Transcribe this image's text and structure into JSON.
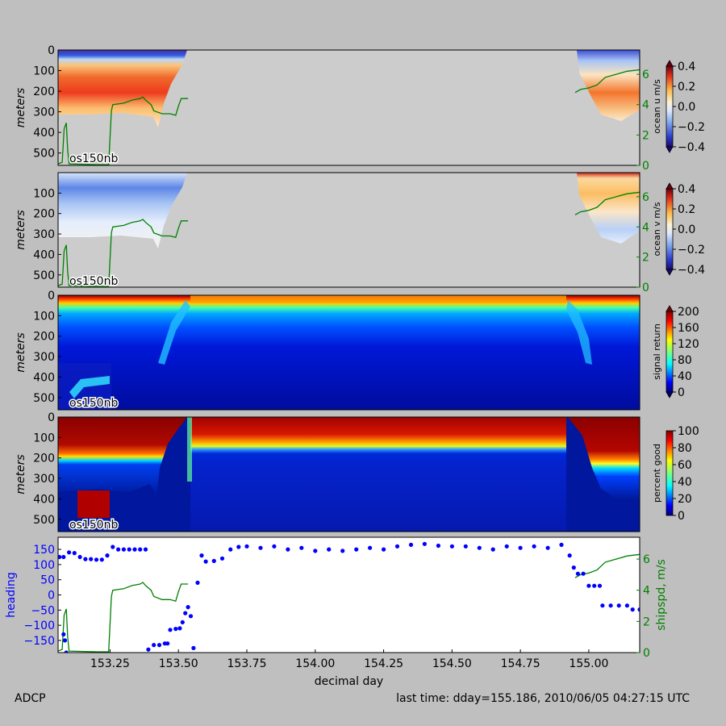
{
  "footer": {
    "left": "ADCP",
    "right": "last time: dday=155.186,  2010/06/05 04:27:15 UTC"
  },
  "colors": {
    "background": "#bfbfbf",
    "no_data": "#cccccc",
    "shipspd_line": "#008000",
    "heading_points": "#0000ff"
  },
  "chart_data": [
    {
      "type": "heatmap",
      "panel": "ocean-u",
      "ylabel": "meters",
      "yticks": [
        0,
        100,
        200,
        300,
        400,
        500
      ],
      "ylim": [
        560,
        0
      ],
      "xlim": [
        153.06,
        155.186
      ],
      "colorbar": {
        "label": "ocean u m/s",
        "ticks": [
          "0.4",
          "0.2",
          "0.0",
          "−0.2",
          "−0.4"
        ],
        "range": [
          -0.45,
          0.45
        ],
        "colormap": "jet-like diverging"
      },
      "right_axis": {
        "ticks": [
          "0",
          "2",
          "4",
          "6"
        ],
        "range": [
          0,
          7.6
        ],
        "color": "#008000"
      },
      "instrument_label": "os150nb",
      "data_segments": [
        [
          153.06,
          153.54
        ],
        [
          154.95,
          155.186
        ]
      ]
    },
    {
      "type": "heatmap",
      "panel": "ocean-v",
      "ylabel": "meters",
      "yticks": [
        100,
        200,
        300,
        400,
        500
      ],
      "ylim": [
        560,
        0
      ],
      "xlim": [
        153.06,
        155.186
      ],
      "colorbar": {
        "label": "ocean v m/s",
        "ticks": [
          "0.4",
          "0.2",
          "0.0",
          "−0.2",
          "−0.4"
        ],
        "range": [
          -0.45,
          0.45
        ],
        "colormap": "jet-like diverging"
      },
      "right_axis": {
        "ticks": [
          "0",
          "2",
          "4",
          "6"
        ],
        "range": [
          0,
          7.6
        ],
        "color": "#008000"
      },
      "instrument_label": "os150nb",
      "data_segments": [
        [
          153.06,
          153.54
        ],
        [
          154.95,
          155.186
        ]
      ]
    },
    {
      "type": "heatmap",
      "panel": "signal-return",
      "ylabel": "meters",
      "yticks": [
        0,
        100,
        200,
        300,
        400,
        500
      ],
      "ylim": [
        560,
        0
      ],
      "xlim": [
        153.06,
        155.186
      ],
      "colorbar": {
        "label": "signal return",
        "ticks": [
          "200",
          "160",
          "120",
          "80",
          "40",
          "0"
        ],
        "range": [
          0,
          200
        ],
        "colormap": "jet"
      },
      "instrument_label": "os150nb"
    },
    {
      "type": "heatmap",
      "panel": "percent-good",
      "ylabel": "meters",
      "yticks": [
        0,
        100,
        200,
        300,
        400,
        500
      ],
      "ylim": [
        560,
        0
      ],
      "xlim": [
        153.06,
        155.186
      ],
      "colorbar": {
        "label": "percent good",
        "ticks": [
          "100",
          "80",
          "60",
          "40",
          "20",
          "0"
        ],
        "range": [
          0,
          100
        ],
        "colormap": "jet"
      },
      "instrument_label": "os150nb"
    },
    {
      "type": "scatter",
      "panel": "heading",
      "ylabel": "heading",
      "y2label": "shipspd, m/s",
      "xlabel": "decimal day",
      "xlim": [
        153.06,
        155.186
      ],
      "ylim": [
        -190,
        190
      ],
      "yticks": [
        "150",
        "100",
        "50",
        "0",
        "−50",
        "−100",
        "−150"
      ],
      "y2ticks": [
        "0",
        "2",
        "4",
        "6"
      ],
      "y2lim": [
        0,
        7.4
      ],
      "xticks": [
        "153.25",
        "153.50",
        "153.75",
        "154.00",
        "154.25",
        "154.50",
        "154.75",
        "155.00"
      ],
      "heading_points": [
        [
          153.065,
          125
        ],
        [
          153.08,
          125
        ],
        [
          153.08,
          -130
        ],
        [
          153.085,
          -150
        ],
        [
          153.09,
          -190
        ],
        [
          153.1,
          140
        ],
        [
          153.12,
          138
        ],
        [
          153.14,
          125
        ],
        [
          153.16,
          118
        ],
        [
          153.18,
          118
        ],
        [
          153.2,
          116
        ],
        [
          153.22,
          116
        ],
        [
          153.24,
          130
        ],
        [
          153.26,
          158
        ],
        [
          153.28,
          150
        ],
        [
          153.3,
          150
        ],
        [
          153.32,
          150
        ],
        [
          153.34,
          150
        ],
        [
          153.36,
          150
        ],
        [
          153.38,
          150
        ],
        [
          153.39,
          -180
        ],
        [
          153.41,
          -165
        ],
        [
          153.43,
          -165
        ],
        [
          153.45,
          -160
        ],
        [
          153.46,
          -160
        ],
        [
          153.47,
          -115
        ],
        [
          153.49,
          -112
        ],
        [
          153.505,
          -110
        ],
        [
          153.515,
          -90
        ],
        [
          153.525,
          -60
        ],
        [
          153.535,
          -40
        ],
        [
          153.545,
          -70
        ],
        [
          153.555,
          -175
        ],
        [
          153.57,
          40
        ],
        [
          153.585,
          130
        ],
        [
          153.6,
          110
        ],
        [
          153.63,
          112
        ],
        [
          153.66,
          120
        ],
        [
          153.69,
          150
        ],
        [
          153.72,
          158
        ],
        [
          153.75,
          160
        ],
        [
          153.8,
          155
        ],
        [
          153.85,
          160
        ],
        [
          153.9,
          150
        ],
        [
          153.95,
          155
        ],
        [
          154.0,
          145
        ],
        [
          154.05,
          150
        ],
        [
          154.1,
          145
        ],
        [
          154.15,
          150
        ],
        [
          154.2,
          155
        ],
        [
          154.25,
          150
        ],
        [
          154.3,
          160
        ],
        [
          154.35,
          165
        ],
        [
          154.4,
          168
        ],
        [
          154.45,
          162
        ],
        [
          154.5,
          160
        ],
        [
          154.55,
          160
        ],
        [
          154.6,
          155
        ],
        [
          154.65,
          150
        ],
        [
          154.7,
          160
        ],
        [
          154.75,
          155
        ],
        [
          154.8,
          160
        ],
        [
          154.85,
          155
        ],
        [
          154.9,
          165
        ],
        [
          154.93,
          130
        ],
        [
          154.945,
          90
        ],
        [
          154.96,
          70
        ],
        [
          154.98,
          70
        ],
        [
          155.0,
          30
        ],
        [
          155.02,
          30
        ],
        [
          155.04,
          30
        ],
        [
          155.05,
          -35
        ],
        [
          155.08,
          -35
        ],
        [
          155.11,
          -35
        ],
        [
          155.14,
          -35
        ],
        [
          155.16,
          -48
        ],
        [
          155.186,
          -48
        ]
      ],
      "shipspd_points": [
        [
          153.06,
          0.1
        ],
        [
          153.075,
          0.2
        ],
        [
          153.082,
          2.4
        ],
        [
          153.09,
          2.8
        ],
        [
          153.095,
          1.0
        ],
        [
          153.1,
          0.1
        ],
        [
          153.2,
          0.05
        ],
        [
          153.245,
          0.05
        ],
        [
          153.255,
          3.6
        ],
        [
          153.26,
          4.0
        ],
        [
          153.3,
          4.1
        ],
        [
          153.33,
          4.3
        ],
        [
          153.36,
          4.4
        ],
        [
          153.37,
          4.5
        ],
        [
          153.38,
          4.3
        ],
        [
          153.4,
          4.0
        ],
        [
          153.41,
          3.6
        ],
        [
          153.44,
          3.4
        ],
        [
          153.47,
          3.4
        ],
        [
          153.49,
          3.3
        ],
        [
          153.5,
          3.9
        ],
        [
          153.51,
          4.4
        ],
        [
          153.535,
          4.4
        ],
        [
          154.95,
          4.8
        ],
        [
          154.97,
          5.0
        ],
        [
          155.0,
          5.1
        ],
        [
          155.03,
          5.3
        ],
        [
          155.06,
          5.8
        ],
        [
          155.1,
          6.0
        ],
        [
          155.14,
          6.2
        ],
        [
          155.186,
          6.3
        ]
      ]
    }
  ]
}
